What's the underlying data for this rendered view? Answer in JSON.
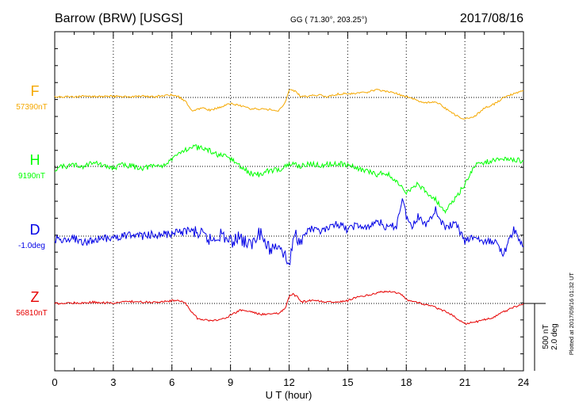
{
  "header": {
    "station": "Barrow (BRW)  [USGS]",
    "coords": "GG ( 71.30°, 203.25°)",
    "date": "2017/08/16"
  },
  "footer": {
    "plotted": "Plotted at 2017/09/16 01:32 UT",
    "scale_nt": "500 nT",
    "scale_deg": "2.0 deg"
  },
  "chart_data": {
    "type": "line",
    "xlabel": "U T (hour)",
    "xlim": [
      0,
      24
    ],
    "x_ticks": [
      0,
      3,
      6,
      9,
      12,
      15,
      18,
      21,
      24
    ],
    "grid": true,
    "scale_bar": {
      "nT": 500,
      "deg": 2.0
    },
    "series": [
      {
        "name": "F",
        "baseline_label": "57390nT",
        "color": "#f5a800",
        "unit": "nT",
        "baseline": 57390,
        "x": [
          0,
          0.5,
          1,
          1.5,
          2,
          2.5,
          3,
          3.5,
          4,
          4.5,
          5,
          5.5,
          6,
          6.3,
          6.7,
          7,
          7.3,
          7.6,
          8,
          8.5,
          9,
          9.5,
          10,
          10.5,
          11,
          11.5,
          11.8,
          12,
          12.2,
          12.4,
          12.6,
          13,
          13.5,
          14,
          14.5,
          15,
          15.5,
          16,
          16.5,
          17,
          17.5,
          17.8,
          18,
          18.5,
          19,
          19.5,
          20,
          20.5,
          21,
          21.5,
          22,
          22.5,
          23,
          23.5,
          24
        ],
        "y": [
          5,
          5,
          5,
          8,
          8,
          8,
          8,
          8,
          5,
          8,
          5,
          12,
          18,
          10,
          -30,
          -100,
          -85,
          -80,
          -95,
          -70,
          -45,
          -60,
          -85,
          -85,
          -90,
          -95,
          -40,
          60,
          50,
          40,
          5,
          10,
          20,
          5,
          25,
          30,
          30,
          40,
          58,
          45,
          30,
          12,
          8,
          -20,
          -40,
          -30,
          -80,
          -130,
          -160,
          -140,
          -80,
          -50,
          0,
          30,
          48
        ]
      },
      {
        "name": "H",
        "baseline_label": "9190nT",
        "color": "#00ff00",
        "unit": "nT",
        "baseline": 9190,
        "x": [
          0,
          0.5,
          1,
          1.5,
          2,
          2.5,
          3,
          3.5,
          4,
          4.5,
          5,
          5.5,
          6,
          6.5,
          7,
          7.5,
          8,
          8.5,
          9,
          9.5,
          10,
          10.5,
          11,
          11.5,
          12,
          12.3,
          12.6,
          13,
          13.5,
          14,
          14.5,
          15,
          15.5,
          16,
          16.5,
          17,
          17.5,
          18,
          18.5,
          19,
          19.5,
          20,
          20.5,
          21,
          21.5,
          22,
          22.5,
          23,
          23.5,
          24
        ],
        "y": [
          -20,
          0,
          10,
          0,
          40,
          0,
          -10,
          10,
          0,
          -10,
          0,
          10,
          40,
          120,
          140,
          140,
          110,
          80,
          60,
          0,
          -50,
          -60,
          -30,
          -20,
          10,
          20,
          0,
          20,
          10,
          15,
          20,
          10,
          -10,
          -40,
          -60,
          -50,
          -120,
          -200,
          -130,
          -180,
          -250,
          -330,
          -240,
          -130,
          10,
          30,
          40,
          60,
          50,
          40
        ]
      },
      {
        "name": "D",
        "baseline_label": "-1.0deg",
        "color": "#0000e6",
        "unit": "deg",
        "baseline": -1.0,
        "x": [
          0,
          0.5,
          1,
          1.5,
          2,
          2.5,
          3,
          3.5,
          4,
          4.5,
          5,
          5.5,
          6,
          6.5,
          7,
          7.5,
          8,
          8.5,
          9,
          9.5,
          10,
          10.5,
          11,
          11.5,
          11.8,
          12,
          12.3,
          12.6,
          13,
          13.5,
          14,
          14.5,
          15,
          15.5,
          16,
          16.5,
          17,
          17.5,
          17.8,
          18,
          18.3,
          18.6,
          19,
          19.5,
          20,
          20.5,
          21,
          21.5,
          22,
          22.5,
          23,
          23.5,
          24
        ],
        "y": [
          -0.08,
          -0.16,
          -0.08,
          -0.2,
          -0.12,
          -0.08,
          -0.04,
          0,
          0.04,
          0,
          0.04,
          0.04,
          0.08,
          0.12,
          0.16,
          0.04,
          -0.12,
          0.08,
          -0.16,
          -0.04,
          -0.28,
          0.08,
          -0.4,
          -0.2,
          -0.6,
          -0.88,
          0.12,
          -0.2,
          0.24,
          0.12,
          0.2,
          0.36,
          0.2,
          0.32,
          0.2,
          0.48,
          0.24,
          0.32,
          1.16,
          0.6,
          0.24,
          0.56,
          0.36,
          0.8,
          0.2,
          0.4,
          -0.16,
          0,
          -0.2,
          -0.12,
          -0.52,
          0.2,
          -0.32
        ]
      },
      {
        "name": "Z",
        "baseline_label": "56810nT",
        "color": "#e60000",
        "unit": "nT",
        "baseline": 56810,
        "x": [
          0,
          0.5,
          1,
          1.5,
          2,
          2.5,
          3,
          3.5,
          4,
          4.5,
          5,
          5.5,
          6,
          6.3,
          6.7,
          7,
          7.3,
          7.6,
          8,
          8.5,
          9,
          9.5,
          10,
          10.5,
          11,
          11.5,
          11.8,
          12,
          12.2,
          12.4,
          12.6,
          13,
          13.5,
          14,
          14.5,
          15,
          15.5,
          16,
          16.5,
          17,
          17.5,
          17.8,
          18,
          18.5,
          19,
          19.5,
          20,
          20.5,
          21,
          21.5,
          22,
          22.5,
          23,
          23.5,
          24
        ],
        "y": [
          0,
          0,
          5,
          5,
          10,
          5,
          5,
          10,
          15,
          10,
          10,
          12,
          20,
          25,
          0,
          -60,
          -110,
          -120,
          -130,
          -120,
          -90,
          -50,
          -60,
          -80,
          -80,
          -70,
          -40,
          50,
          70,
          50,
          10,
          20,
          20,
          10,
          10,
          20,
          50,
          60,
          80,
          90,
          80,
          60,
          30,
          10,
          -10,
          -30,
          -60,
          -100,
          -150,
          -140,
          -120,
          -100,
          -60,
          -30,
          0
        ]
      }
    ]
  }
}
